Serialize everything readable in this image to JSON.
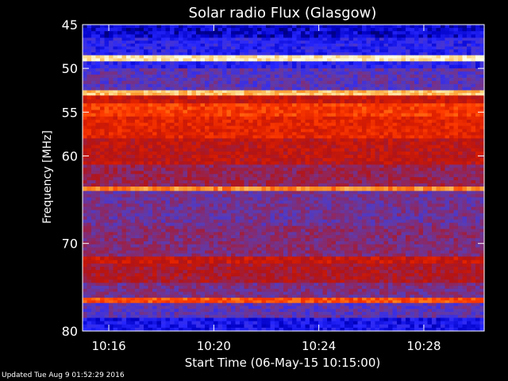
{
  "chart_data": {
    "type": "heatmap",
    "title": "Solar radio Flux (Glasgow)",
    "xlabel": "Start Time (06-May-15 10:15:00)",
    "ylabel": "Frequency [MHz]",
    "x_unit": "minutes since 10:15:00",
    "xlim": [
      0,
      15.3
    ],
    "ylim": [
      45,
      80
    ],
    "y_inverted": true,
    "x_ticks": [
      {
        "value": 1,
        "label": "10:16"
      },
      {
        "value": 5,
        "label": "10:20"
      },
      {
        "value": 9,
        "label": "10:24"
      },
      {
        "value": 13,
        "label": "10:28"
      }
    ],
    "y_ticks": [
      {
        "value": 45,
        "label": "45"
      },
      {
        "value": 50,
        "label": "50"
      },
      {
        "value": 55,
        "label": "55"
      },
      {
        "value": 60,
        "label": "60"
      },
      {
        "value": 70,
        "label": "70"
      },
      {
        "value": 80,
        "label": "80"
      }
    ],
    "colormap": [
      "#000028",
      "#0000c8",
      "#2828ff",
      "#5a3cb4",
      "#8c2864",
      "#b41414",
      "#dc1e00",
      "#ff3c00",
      "#ff8c1e",
      "#ffd27a",
      "#ffffe6"
    ],
    "intensity_bands": [
      {
        "from": 45,
        "to": 46.5,
        "intensity": 0.12
      },
      {
        "from": 46.5,
        "to": 48.5,
        "intensity": 0.2
      },
      {
        "from": 48.5,
        "to": 49.2,
        "intensity": 0.95
      },
      {
        "from": 49.2,
        "to": 50,
        "intensity": 0.2
      },
      {
        "from": 50,
        "to": 52.5,
        "intensity": 0.3
      },
      {
        "from": 52.5,
        "to": 53.1,
        "intensity": 0.88
      },
      {
        "from": 53.1,
        "to": 54,
        "intensity": 0.55
      },
      {
        "from": 54,
        "to": 55.5,
        "intensity": 0.68
      },
      {
        "from": 55.5,
        "to": 58,
        "intensity": 0.62
      },
      {
        "from": 58,
        "to": 61,
        "intensity": 0.52
      },
      {
        "from": 61,
        "to": 63.5,
        "intensity": 0.42
      },
      {
        "from": 63.5,
        "to": 64,
        "intensity": 0.8
      },
      {
        "from": 64,
        "to": 68,
        "intensity": 0.34
      },
      {
        "from": 68,
        "to": 71.5,
        "intensity": 0.38
      },
      {
        "from": 71.5,
        "to": 72.3,
        "intensity": 0.55
      },
      {
        "from": 72.3,
        "to": 74.5,
        "intensity": 0.48
      },
      {
        "from": 74.5,
        "to": 76.2,
        "intensity": 0.36
      },
      {
        "from": 76.2,
        "to": 76.8,
        "intensity": 0.72
      },
      {
        "from": 76.8,
        "to": 78.5,
        "intensity": 0.3
      },
      {
        "from": 78.5,
        "to": 80,
        "intensity": 0.16
      }
    ]
  },
  "footer": {
    "updated": "Updated Tue Aug  9 01:52:29 2016"
  }
}
